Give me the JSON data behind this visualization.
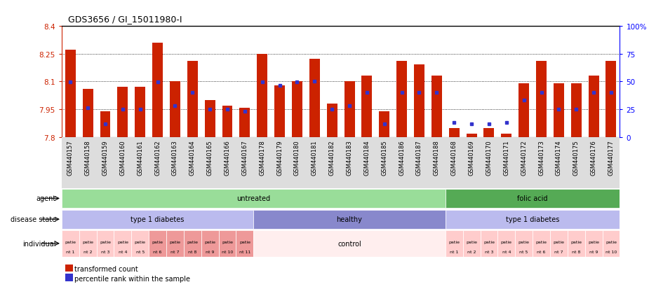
{
  "title": "GDS3656 / GI_15011980-I",
  "samples": [
    "GSM440157",
    "GSM440158",
    "GSM440159",
    "GSM440160",
    "GSM440161",
    "GSM440162",
    "GSM440163",
    "GSM440164",
    "GSM440165",
    "GSM440166",
    "GSM440167",
    "GSM440178",
    "GSM440179",
    "GSM440180",
    "GSM440181",
    "GSM440182",
    "GSM440183",
    "GSM440184",
    "GSM440185",
    "GSM440186",
    "GSM440187",
    "GSM440188",
    "GSM440168",
    "GSM440169",
    "GSM440170",
    "GSM440171",
    "GSM440172",
    "GSM440173",
    "GSM440174",
    "GSM440175",
    "GSM440176",
    "GSM440177"
  ],
  "bar_values": [
    8.27,
    8.06,
    7.94,
    8.07,
    8.07,
    8.31,
    8.1,
    8.21,
    8.0,
    7.97,
    7.96,
    8.25,
    8.08,
    8.1,
    8.22,
    7.98,
    8.1,
    8.13,
    7.94,
    8.21,
    8.19,
    8.13,
    7.85,
    7.82,
    7.85,
    7.82,
    8.09,
    8.21,
    8.09,
    8.09,
    8.13,
    8.21
  ],
  "percentile_values": [
    8.097,
    7.96,
    7.87,
    7.95,
    7.95,
    8.097,
    7.97,
    8.04,
    7.95,
    7.95,
    7.94,
    8.097,
    8.08,
    8.097,
    8.1,
    7.95,
    7.97,
    8.04,
    7.87,
    8.04,
    8.04,
    8.04,
    7.88,
    7.87,
    7.87,
    7.88,
    8.0,
    8.04,
    7.95,
    7.95,
    8.04,
    8.04
  ],
  "ymin": 7.8,
  "ymax": 8.4,
  "yticks": [
    7.8,
    7.95,
    8.1,
    8.25,
    8.4
  ],
  "ytick_labels": [
    "7.8",
    "7.95",
    "8.1",
    "8.25",
    "8.4"
  ],
  "right_yticks": [
    0,
    25,
    50,
    75,
    100
  ],
  "right_ytick_labels": [
    "0",
    "25",
    "50",
    "75",
    "100%"
  ],
  "bar_color": "#CC2200",
  "dot_color": "#3333CC",
  "agent_groups": [
    {
      "label": "untreated",
      "start": 0,
      "end": 22,
      "color": "#99DD99"
    },
    {
      "label": "folic acid",
      "start": 22,
      "end": 32,
      "color": "#55AA55"
    }
  ],
  "disease_groups": [
    {
      "label": "type 1 diabetes",
      "start": 0,
      "end": 11,
      "color": "#BBBBEE"
    },
    {
      "label": "healthy",
      "start": 11,
      "end": 22,
      "color": "#8888CC"
    },
    {
      "label": "type 1 diabetes",
      "start": 22,
      "end": 32,
      "color": "#BBBBEE"
    }
  ],
  "individual_groups_left": [
    {
      "label": "patie\nnt 1",
      "start": 0,
      "end": 1,
      "color": "#FFCCCC"
    },
    {
      "label": "patie\nnt 2",
      "start": 1,
      "end": 2,
      "color": "#FFCCCC"
    },
    {
      "label": "patie\nnt 3",
      "start": 2,
      "end": 3,
      "color": "#FFCCCC"
    },
    {
      "label": "patie\nnt 4",
      "start": 3,
      "end": 4,
      "color": "#FFCCCC"
    },
    {
      "label": "patie\nnt 5",
      "start": 4,
      "end": 5,
      "color": "#FFCCCC"
    },
    {
      "label": "patie\nnt 6",
      "start": 5,
      "end": 6,
      "color": "#EE9999"
    },
    {
      "label": "patie\nnt 7",
      "start": 6,
      "end": 7,
      "color": "#EE9999"
    },
    {
      "label": "patie\nnt 8",
      "start": 7,
      "end": 8,
      "color": "#EE9999"
    },
    {
      "label": "patie\nnt 9",
      "start": 8,
      "end": 9,
      "color": "#EE9999"
    },
    {
      "label": "patie\nnt 10",
      "start": 9,
      "end": 10,
      "color": "#EE9999"
    },
    {
      "label": "patie\nnt 11",
      "start": 10,
      "end": 11,
      "color": "#EE9999"
    }
  ],
  "individual_groups_right": [
    {
      "label": "patie\nnt 1",
      "start": 22,
      "end": 23,
      "color": "#FFCCCC"
    },
    {
      "label": "patie\nnt 2",
      "start": 23,
      "end": 24,
      "color": "#FFCCCC"
    },
    {
      "label": "patie\nnt 3",
      "start": 24,
      "end": 25,
      "color": "#FFCCCC"
    },
    {
      "label": "patie\nnt 4",
      "start": 25,
      "end": 26,
      "color": "#FFCCCC"
    },
    {
      "label": "patie\nnt 5",
      "start": 26,
      "end": 27,
      "color": "#FFCCCC"
    },
    {
      "label": "patie\nnt 6",
      "start": 27,
      "end": 28,
      "color": "#FFCCCC"
    },
    {
      "label": "patie\nnt 7",
      "start": 28,
      "end": 29,
      "color": "#FFCCCC"
    },
    {
      "label": "patie\nnt 8",
      "start": 29,
      "end": 30,
      "color": "#FFCCCC"
    },
    {
      "label": "patie\nnt 9",
      "start": 30,
      "end": 31,
      "color": "#FFCCCC"
    },
    {
      "label": "patie\nnt 10",
      "start": 31,
      "end": 32,
      "color": "#FFCCCC"
    }
  ],
  "individual_healthy_label": "control",
  "individual_healthy_color": "#FFEEEE",
  "row_label_agent": "agent",
  "row_label_disease": "disease state",
  "row_label_individual": "individual",
  "legend_bar": "transformed count",
  "legend_dot": "percentile rank within the sample",
  "xlabels_bg": "#DDDDDD"
}
